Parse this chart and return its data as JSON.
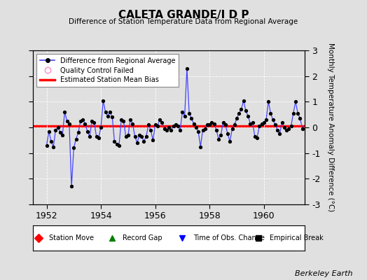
{
  "title": "CALETA GRANDE/I D P",
  "subtitle": "Difference of Station Temperature Data from Regional Average",
  "ylabel": "Monthly Temperature Anomaly Difference (°C)",
  "credit": "Berkeley Earth",
  "ylim": [
    -3,
    3
  ],
  "xlim": [
    1951.5,
    1961.5
  ],
  "yticks": [
    -3,
    -2,
    -1,
    0,
    1,
    2,
    3
  ],
  "xticks": [
    1952,
    1954,
    1956,
    1958,
    1960
  ],
  "bias_value": 0.05,
  "background_color": "#e0e0e0",
  "plot_bg_color": "#e0e0e0",
  "line_color": "#4444ff",
  "marker_color": "#000000",
  "bias_color": "#ff0000",
  "grid_color": "#ffffff",
  "times": [
    1952.0,
    1952.083,
    1952.167,
    1952.25,
    1952.333,
    1952.417,
    1952.5,
    1952.583,
    1952.667,
    1952.75,
    1952.833,
    1952.917,
    1953.0,
    1953.083,
    1953.167,
    1953.25,
    1953.333,
    1953.417,
    1953.5,
    1953.583,
    1953.667,
    1953.75,
    1953.833,
    1953.917,
    1954.0,
    1954.083,
    1954.167,
    1954.25,
    1954.333,
    1954.417,
    1954.5,
    1954.583,
    1954.667,
    1954.75,
    1954.833,
    1954.917,
    1955.0,
    1955.083,
    1955.167,
    1955.25,
    1955.333,
    1955.417,
    1955.5,
    1955.583,
    1955.667,
    1955.75,
    1955.833,
    1955.917,
    1956.0,
    1956.083,
    1956.167,
    1956.25,
    1956.333,
    1956.417,
    1956.5,
    1956.583,
    1956.667,
    1956.75,
    1956.833,
    1956.917,
    1957.0,
    1957.083,
    1957.167,
    1957.25,
    1957.333,
    1957.417,
    1957.5,
    1957.583,
    1957.667,
    1957.75,
    1957.833,
    1957.917,
    1958.0,
    1958.083,
    1958.167,
    1958.25,
    1958.333,
    1958.417,
    1958.5,
    1958.583,
    1958.667,
    1958.75,
    1958.833,
    1958.917,
    1959.0,
    1959.083,
    1959.167,
    1959.25,
    1959.333,
    1959.417,
    1959.5,
    1959.583,
    1959.667,
    1959.75,
    1959.833,
    1959.917,
    1960.0,
    1960.083,
    1960.167,
    1960.25,
    1960.333,
    1960.417,
    1960.5,
    1960.583,
    1960.667,
    1960.75,
    1960.833,
    1960.917,
    1961.0,
    1961.083,
    1961.167,
    1961.25,
    1961.333,
    1961.417
  ],
  "values": [
    -0.7,
    -0.15,
    -0.55,
    -0.75,
    -0.1,
    0.0,
    -0.2,
    -0.3,
    0.6,
    0.25,
    0.15,
    -2.3,
    -0.8,
    -0.45,
    -0.2,
    0.25,
    0.3,
    0.15,
    -0.15,
    -0.35,
    0.25,
    0.2,
    -0.35,
    -0.4,
    0.0,
    1.05,
    0.6,
    0.45,
    0.6,
    0.4,
    -0.55,
    -0.65,
    -0.7,
    0.3,
    0.25,
    -0.35,
    -0.3,
    0.3,
    0.15,
    -0.35,
    -0.6,
    -0.3,
    -0.35,
    -0.55,
    -0.35,
    0.1,
    -0.1,
    -0.5,
    0.1,
    0.05,
    0.3,
    0.2,
    -0.05,
    -0.1,
    0.0,
    -0.1,
    0.05,
    0.1,
    0.05,
    -0.1,
    0.6,
    0.45,
    2.3,
    0.55,
    0.35,
    0.15,
    0.0,
    -0.15,
    -0.75,
    -0.1,
    -0.05,
    0.1,
    0.1,
    0.2,
    0.15,
    -0.1,
    -0.45,
    -0.3,
    0.2,
    0.1,
    -0.25,
    -0.55,
    -0.05,
    0.1,
    0.35,
    0.55,
    0.7,
    1.05,
    0.65,
    0.45,
    0.15,
    0.2,
    -0.35,
    -0.4,
    0.05,
    0.15,
    0.2,
    0.3,
    1.0,
    0.55,
    0.3,
    0.1,
    -0.1,
    -0.25,
    0.2,
    0.0,
    -0.1,
    -0.05,
    0.05,
    0.55,
    1.0,
    0.55,
    0.35,
    -0.05
  ]
}
